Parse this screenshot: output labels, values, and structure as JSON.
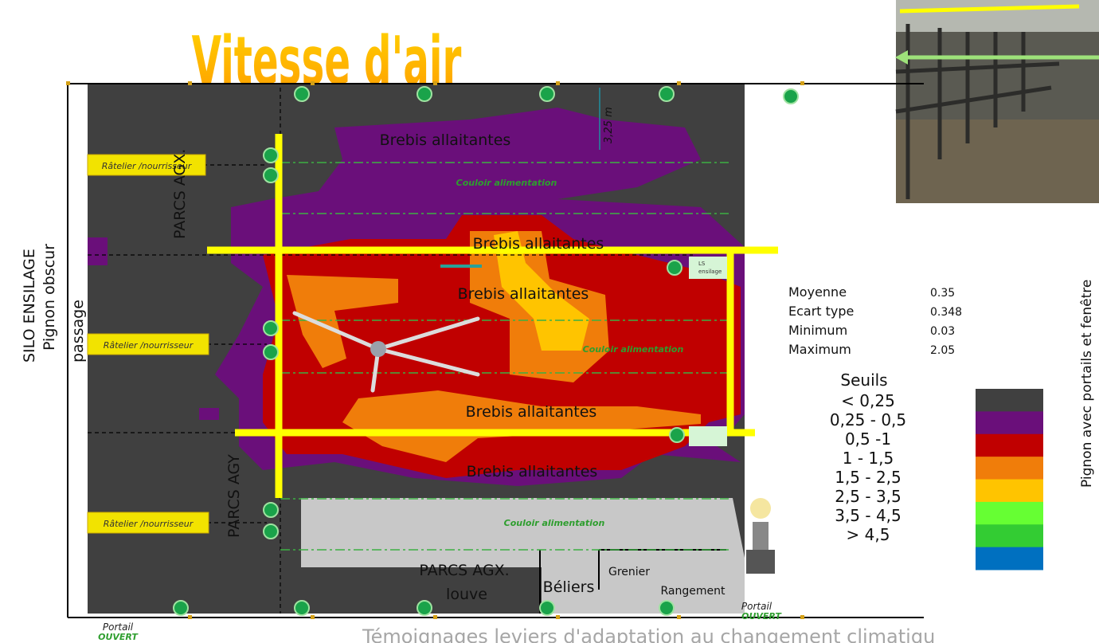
{
  "title": "Vitesse d'air",
  "plan": {
    "animals": [
      "Brebis allaitantes",
      "Brebis allaitantes",
      "Brebis allaitantes",
      "Brebis allaitantes",
      "Brebis allaitantes"
    ],
    "corridors": [
      "Couloir alimentation",
      "Couloir alimentation",
      "Couloir alimentation"
    ],
    "feeders": [
      "Râtelier /nourrisseur",
      "Râtelier /nourrisseur",
      "Râtelier /nourrisseur"
    ],
    "parcs_agx": "PARCS AGX.",
    "parcs_agy": "PARCS AGY",
    "passage": "passage",
    "silo": [
      "SILO ENSILAGE",
      "Pignon obscur"
    ],
    "pignon_right": "Pignon avec portails et fenêtre",
    "height": "3,25 m",
    "ls": [
      "LS",
      "ensilage"
    ],
    "louve": [
      "PARCS AGX.",
      "louve"
    ],
    "beliers": "Béliers",
    "grenier": "Grenier",
    "rangement": "Rangement",
    "portails": [
      {
        "line1": "Portail",
        "line2": "OUVERT"
      },
      {
        "line1": "Portail",
        "line2": "OUVERT"
      }
    ]
  },
  "stats": {
    "rows": [
      [
        "Moyenne",
        0.35
      ],
      [
        "Ecart type",
        0.348
      ],
      [
        "Minimum",
        0.03
      ],
      [
        "Maximum",
        2.05
      ]
    ]
  },
  "thresholds": {
    "title": "Seuils",
    "levels": [
      {
        "label": "< 0,25",
        "color": "#404040"
      },
      {
        "label": "0,25 - 0,5",
        "color": "#6a0f7a"
      },
      {
        "label": "0,5 -1",
        "color": "#c00000"
      },
      {
        "label": "1 - 1,5",
        "color": "#f07d0a"
      },
      {
        "label": "1,5 - 2,5",
        "color": "#ffc400"
      },
      {
        "label": "2,5 - 3,5",
        "color": "#66ff33"
      },
      {
        "label": "3,5 - 4,5",
        "color": "#33cc33"
      },
      {
        "label": "> 4,5",
        "color": "#0070c0"
      }
    ]
  },
  "footer": "Témoignages leviers d'adaptation au changement climatiqu"
}
